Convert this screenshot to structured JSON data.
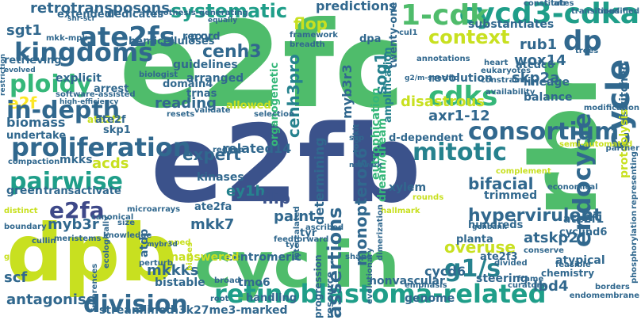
{
  "words": [
    {
      "text": "e2fc",
      "color": "#4fbc6b",
      "weight": 10
    },
    {
      "text": "e2fb",
      "color": "#3b528b",
      "weight": 9
    },
    {
      "text": "rbr",
      "color": "#4fbc6b",
      "weight": 8
    },
    {
      "text": "dpb",
      "color": "#c8e020",
      "weight": 8
    },
    {
      "text": "cyclin",
      "color": "#4fbc6b",
      "weight": 7
    },
    {
      "text": "retinoblastoma-related",
      "color": "#1f9e89",
      "weight": 5
    },
    {
      "text": "cycd3-cdka",
      "color": "#1f9e89",
      "weight": 5
    },
    {
      "text": "1-cdk",
      "color": "#4fbc6b",
      "weight": 5
    },
    {
      "text": "e2f",
      "color": "#fde725",
      "weight": 4
    },
    {
      "text": "ate2fs",
      "color": "#31688e",
      "weight": 4
    },
    {
      "text": "kingdoms",
      "color": "#31688e",
      "weight": 4
    },
    {
      "text": "dp",
      "color": "#31688e",
      "weight": 4
    },
    {
      "text": "cycle",
      "color": "#31688e",
      "weight": 4
    },
    {
      "text": "context",
      "color": "#c8e020",
      "weight": 4
    },
    {
      "text": "ploidy",
      "color": "#35b779",
      "weight": 4
    },
    {
      "text": "in-depth",
      "color": "#31688e",
      "weight": 4
    },
    {
      "text": "proliferation",
      "color": "#31688e",
      "weight": 4
    },
    {
      "text": "consortium",
      "color": "#31688e",
      "weight": 4
    },
    {
      "text": "cdks",
      "color": "#35b779",
      "weight": 4
    },
    {
      "text": "mitotic",
      "color": "#26828e",
      "weight": 4
    },
    {
      "text": "pairwise",
      "color": "#1f9e89",
      "weight": 4
    },
    {
      "text": "division",
      "color": "#31688e",
      "weight": 4
    },
    {
      "text": "g1/s",
      "color": "#26828e",
      "weight": 4
    },
    {
      "text": "endocycle",
      "color": "#31688e",
      "weight": 4
    },
    {
      "text": "e2fa",
      "color": "#3e4989",
      "weight": 3
    },
    {
      "text": "systematic",
      "color": "#1f9e89",
      "weight": 3
    },
    {
      "text": "retrotransposons",
      "color": "#31688e",
      "weight": 3
    },
    {
      "text": "cenh3",
      "color": "#31688e",
      "weight": 3
    },
    {
      "text": "cenh3pro",
      "color": "#26828e",
      "weight": 3
    },
    {
      "text": "sog1",
      "color": "#26828e",
      "weight": 3
    },
    {
      "text": "rub1",
      "color": "#31688e",
      "weight": 3
    },
    {
      "text": "wox14",
      "color": "#31688e",
      "weight": 3
    },
    {
      "text": "skp2a",
      "color": "#31688e",
      "weight": 3
    },
    {
      "text": "myb3r3",
      "color": "#31688e",
      "weight": 3
    },
    {
      "text": "reading",
      "color": "#31688e",
      "weight": 3
    },
    {
      "text": "related14",
      "color": "#31688e",
      "weight": 3
    },
    {
      "text": "expert",
      "color": "#31688e",
      "weight": 3
    },
    {
      "text": "determining",
      "color": "#31688e",
      "weight": 3
    },
    {
      "text": "assertions",
      "color": "#31688e",
      "weight": 3
    },
    {
      "text": "monopteros6",
      "color": "#31688e",
      "weight": 3
    },
    {
      "text": "hypervirulent",
      "color": "#31688e",
      "weight": 3
    },
    {
      "text": "atskp2",
      "color": "#31688e",
      "weight": 3
    },
    {
      "text": "bifacial",
      "color": "#31688e",
      "weight": 3
    },
    {
      "text": "ey1h",
      "color": "#26828e",
      "weight": 3
    },
    {
      "text": "flip",
      "color": "#3b528b",
      "weight": 3
    },
    {
      "text": "mkk7",
      "color": "#31688e",
      "weight": 3
    },
    {
      "text": "myb3r",
      "color": "#31688e",
      "weight": 3
    },
    {
      "text": "mkkks",
      "color": "#31688e",
      "weight": 3
    },
    {
      "text": "antagonise",
      "color": "#31688e",
      "weight": 3
    },
    {
      "text": "scf",
      "color": "#31688e",
      "weight": 3
    },
    {
      "text": "lbd4",
      "color": "#31688e",
      "weight": 3
    },
    {
      "text": "overuse",
      "color": "#c8e020",
      "weight": 3
    },
    {
      "text": "disastrous",
      "color": "#c8e020",
      "weight": 3
    },
    {
      "text": "flop",
      "color": "#c8e020",
      "weight": 3
    },
    {
      "text": "sgt1",
      "color": "#31688e",
      "weight": 3
    },
    {
      "text": "biomass",
      "color": "#31688e",
      "weight": 3
    },
    {
      "text": "acds",
      "color": "#c8e020",
      "weight": 3
    },
    {
      "text": "axr1-12",
      "color": "#31688e",
      "weight": 3
    },
    {
      "text": "cycd6",
      "color": "#31688e",
      "weight": 3
    },
    {
      "text": "paint",
      "color": "#31688e",
      "weight": 3
    },
    {
      "text": "predictions",
      "color": "#31688e",
      "weight": 2
    },
    {
      "text": "dream/dream",
      "color": "#35b779",
      "weight": 2
    },
    {
      "text": "eutrophication",
      "color": "#35b779",
      "weight": 2
    },
    {
      "text": "amplification",
      "color": "#26828e",
      "weight": 2
    },
    {
      "text": "revolution",
      "color": "#31688e",
      "weight": 2
    },
    {
      "text": "lineage",
      "color": "#31688e",
      "weight": 2
    },
    {
      "text": "balance",
      "color": "#31688e",
      "weight": 2
    },
    {
      "text": "switched",
      "color": "#31688e",
      "weight": 2
    },
    {
      "text": "proteolysis",
      "color": "#c8e020",
      "weight": 2
    },
    {
      "text": "substantiates",
      "color": "#31688e",
      "weight": 2
    },
    {
      "text": "guidelines",
      "color": "#31688e",
      "weight": 2
    },
    {
      "text": "arranged",
      "color": "#31688e",
      "weight": 2
    },
    {
      "text": "organogenetic",
      "color": "#35b779",
      "weight": 2
    },
    {
      "text": "kinases",
      "color": "#31688e",
      "weight": 2
    },
    {
      "text": "ate2fa",
      "color": "#31688e",
      "weight": 2
    },
    {
      "text": "ate2f1",
      "color": "#31688e",
      "weight": 2
    },
    {
      "text": "ate2f2",
      "color": "#c8e020",
      "weight": 2
    },
    {
      "text": "ate2f3",
      "color": "#31688e",
      "weight": 2
    },
    {
      "text": "cyclind6",
      "color": "#31688e",
      "weight": 2
    },
    {
      "text": "xylem",
      "color": "#31688e",
      "weight": 2
    },
    {
      "text": "trimmed",
      "color": "#31688e",
      "weight": 2
    },
    {
      "text": "hundreds",
      "color": "#31688e",
      "weight": 2
    },
    {
      "text": "planta",
      "color": "#31688e",
      "weight": 2
    },
    {
      "text": "atypical",
      "color": "#31688e",
      "weight": 2
    },
    {
      "text": "chemistry",
      "color": "#31688e",
      "weight": 2
    },
    {
      "text": "steering",
      "color": "#31688e",
      "weight": 2
    },
    {
      "text": "nonvascular",
      "color": "#31688e",
      "weight": 2
    },
    {
      "text": "genome",
      "color": "#31688e",
      "weight": 2
    },
    {
      "text": "centromeric",
      "color": "#31688e",
      "weight": 2
    },
    {
      "text": "bistable",
      "color": "#31688e",
      "weight": 2
    },
    {
      "text": "tmo6",
      "color": "#31688e",
      "weight": 2
    },
    {
      "text": "streamlined",
      "color": "#31688e",
      "weight": 2
    },
    {
      "text": "h3k27me3-marked",
      "color": "#31688e",
      "weight": 2
    },
    {
      "text": "unanswered",
      "color": "#c8e020",
      "weight": 2
    },
    {
      "text": "green",
      "color": "#31688e",
      "weight": 2
    },
    {
      "text": "transactivate",
      "color": "#31688e",
      "weight": 2
    },
    {
      "text": "mkks",
      "color": "#31688e",
      "weight": 2
    },
    {
      "text": "pxy",
      "color": "#31688e",
      "weight": 2
    },
    {
      "text": "record",
      "color": "#31688e",
      "weight": 2
    },
    {
      "text": "hemicelluloses",
      "color": "#31688e",
      "weight": 2
    },
    {
      "text": "explicit",
      "color": "#31688e",
      "weight": 2
    },
    {
      "text": "extended",
      "color": "#31688e",
      "weight": 2
    },
    {
      "text": "dedicates",
      "color": "#31688e",
      "weight": 2
    },
    {
      "text": "domain4",
      "color": "#31688e",
      "weight": 2
    },
    {
      "text": "trnas",
      "color": "#31688e",
      "weight": 2
    },
    {
      "text": "allowed",
      "color": "#c8e020",
      "weight": 2
    },
    {
      "text": "atdp",
      "color": "#31688e",
      "weight": 2
    },
    {
      "text": "handling",
      "color": "#31688e",
      "weight": 2
    },
    {
      "text": "d-dependent",
      "color": "#31688e",
      "weight": 2
    },
    {
      "text": "atcdc6",
      "color": "#31688e",
      "weight": 2
    },
    {
      "text": "twenty-one",
      "color": "#31688e",
      "weight": 2
    },
    {
      "text": "dpa",
      "color": "#31688e",
      "weight": 2
    },
    {
      "text": "retrieving",
      "color": "#31688e",
      "weight": 2
    },
    {
      "text": "arrest",
      "color": "#31688e",
      "weight": 2
    },
    {
      "text": "ate2f",
      "color": "#31688e",
      "weight": 2
    },
    {
      "text": "undertake",
      "color": "#31688e",
      "weight": 2
    },
    {
      "text": "skp1",
      "color": "#31688e",
      "weight": 2
    },
    {
      "text": "tyr",
      "color": "#31688e",
      "weight": 2
    },
    {
      "text": "progression",
      "color": "#31688e",
      "weight": 2
    },
    {
      "text": "resource",
      "color": "#31688e",
      "weight": 2
    },
    {
      "text": "atr",
      "color": "#31688e",
      "weight": 1
    },
    {
      "text": "constitutes",
      "color": "#31688e",
      "weight": 1
    },
    {
      "text": "transitions",
      "color": "#31688e",
      "weight": 1
    },
    {
      "text": "modified",
      "color": "#31688e",
      "weight": 1
    },
    {
      "text": "hypothesis-generating",
      "color": "#31688e",
      "weight": 1
    },
    {
      "text": "framework",
      "color": "#31688e",
      "weight": 1
    },
    {
      "text": "breadth",
      "color": "#31688e",
      "weight": 1
    },
    {
      "text": "annotations",
      "color": "#31688e",
      "weight": 1
    },
    {
      "text": "cul1",
      "color": "#31688e",
      "weight": 1
    },
    {
      "text": "trees",
      "color": "#31688e",
      "weight": 1
    },
    {
      "text": "heart",
      "color": "#31688e",
      "weight": 1
    },
    {
      "text": "eukaryotes",
      "color": "#31688e",
      "weight": 1
    },
    {
      "text": "constrains",
      "color": "#31688e",
      "weight": 1
    },
    {
      "text": "modification",
      "color": "#31688e",
      "weight": 1
    },
    {
      "text": "availability",
      "color": "#31688e",
      "weight": 1
    },
    {
      "text": "g2/m-specific",
      "color": "#31688e",
      "weight": 1
    },
    {
      "text": "biologist",
      "color": "#31688e",
      "weight": 1
    },
    {
      "text": "software-assisted",
      "color": "#31688e",
      "weight": 1
    },
    {
      "text": "high-efficiency",
      "color": "#31688e",
      "weight": 1
    },
    {
      "text": "validate",
      "color": "#31688e",
      "weight": 1
    },
    {
      "text": "resets",
      "color": "#31688e",
      "weight": 1
    },
    {
      "text": "selection",
      "color": "#31688e",
      "weight": 1
    },
    {
      "text": "toolkit",
      "color": "#31688e",
      "weight": 1
    },
    {
      "text": "ssp",
      "color": "#31688e",
      "weight": 1
    },
    {
      "text": "regime",
      "color": "#31688e",
      "weight": 1
    },
    {
      "text": "semi-automated",
      "color": "#c8e020",
      "weight": 1
    },
    {
      "text": "partner",
      "color": "#31688e",
      "weight": 1
    },
    {
      "text": "complement",
      "color": "#c8e020",
      "weight": 1
    },
    {
      "text": "economical",
      "color": "#31688e",
      "weight": 1
    },
    {
      "text": "representing",
      "color": "#31688e",
      "weight": 1
    },
    {
      "text": "phosphorylation",
      "color": "#31688e",
      "weight": 1
    },
    {
      "text": "feasible",
      "color": "#31688e",
      "weight": 1
    },
    {
      "text": "frame",
      "color": "#31688e",
      "weight": 1
    },
    {
      "text": "curators",
      "color": "#31688e",
      "weight": 1
    },
    {
      "text": "borders",
      "color": "#31688e",
      "weight": 1
    },
    {
      "text": "endomembrane",
      "color": "#31688e",
      "weight": 1
    },
    {
      "text": "conserve",
      "color": "#31688e",
      "weight": 1
    },
    {
      "text": "divided",
      "color": "#31688e",
      "weight": 1
    },
    {
      "text": "emphasis",
      "color": "#31688e",
      "weight": 1
    },
    {
      "text": "genbank",
      "color": "#31688e",
      "weight": 1
    },
    {
      "text": "hallmark",
      "color": "#c8e020",
      "weight": 1
    },
    {
      "text": "rounds",
      "color": "#c8e020",
      "weight": 1
    },
    {
      "text": "ascribed",
      "color": "#31688e",
      "weight": 1
    },
    {
      "text": "evolutionary",
      "color": "#31688e",
      "weight": 1
    },
    {
      "text": "dimerization",
      "color": "#31688e",
      "weight": 1
    },
    {
      "text": "intercalated",
      "color": "#31688e",
      "weight": 1
    },
    {
      "text": "network",
      "color": "#31688e",
      "weight": 1
    },
    {
      "text": "feedforward",
      "color": "#31688e",
      "weight": 1
    },
    {
      "text": "shape",
      "color": "#31688e",
      "weight": 1
    },
    {
      "text": "root",
      "color": "#31688e",
      "weight": 1
    },
    {
      "text": "broad",
      "color": "#31688e",
      "weight": 1
    },
    {
      "text": "mapped",
      "color": "#c8e020",
      "weight": 1
    },
    {
      "text": "perturb",
      "color": "#31688e",
      "weight": 1
    },
    {
      "text": "microarrays",
      "color": "#31688e",
      "weight": 1
    },
    {
      "text": "canonical",
      "color": "#31688e",
      "weight": 1
    },
    {
      "text": "ecologically",
      "color": "#31688e",
      "weight": 1
    },
    {
      "text": "size",
      "color": "#31688e",
      "weight": 1
    },
    {
      "text": "knowledge",
      "color": "#31688e",
      "weight": 1
    },
    {
      "text": "meristems",
      "color": "#31688e",
      "weight": 1
    },
    {
      "text": "inferences",
      "color": "#31688e",
      "weight": 1
    },
    {
      "text": "boundary",
      "color": "#31688e",
      "weight": 1
    },
    {
      "text": "cullin",
      "color": "#31688e",
      "weight": 1
    },
    {
      "text": "grfs",
      "color": "#c8e020",
      "weight": 1
    },
    {
      "text": "distinct",
      "color": "#c8e020",
      "weight": 1
    },
    {
      "text": "compaction",
      "color": "#31688e",
      "weight": 1
    },
    {
      "text": "evolved",
      "color": "#31688e",
      "weight": 1
    },
    {
      "text": "restriction",
      "color": "#31688e",
      "weight": 1
    },
    {
      "text": "shr-scr",
      "color": "#31688e",
      "weight": 1
    },
    {
      "text": "equally",
      "color": "#31688e",
      "weight": 1
    },
    {
      "text": "mkk-mpk",
      "color": "#31688e",
      "weight": 1
    },
    {
      "text": "biases",
      "color": "#c8e020",
      "weight": 1
    },
    {
      "text": "mybr3d",
      "color": "#31688e",
      "weight": 1
    },
    {
      "text": "tyr",
      "color": "#31688e",
      "weight": 1
    }
  ]
}
